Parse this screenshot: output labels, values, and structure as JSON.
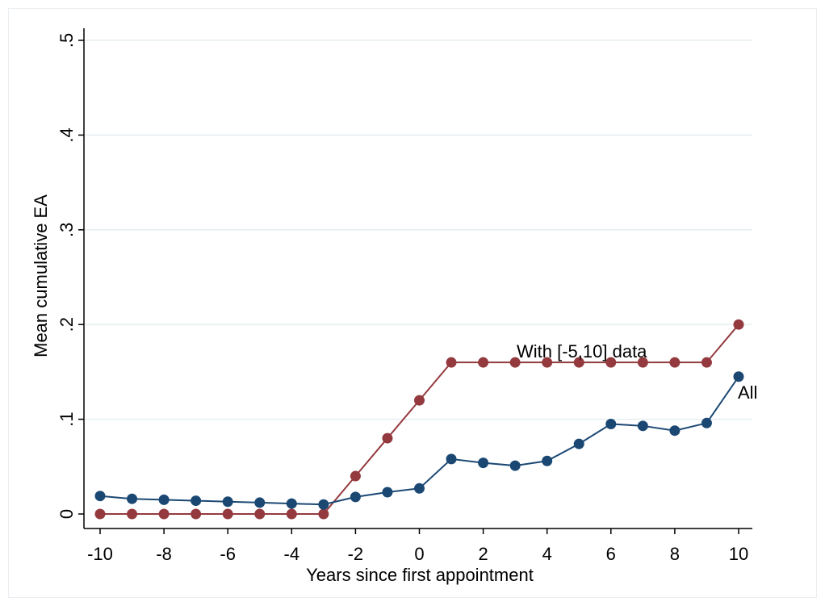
{
  "chart_data": {
    "type": "line",
    "title": "",
    "xlabel": "Years since first appointment",
    "ylabel": "Mean cumulative EA",
    "xlim": [
      -10,
      10
    ],
    "ylim": [
      0,
      0.5
    ],
    "x_ticks": [
      -10,
      -8,
      -6,
      -4,
      -2,
      0,
      2,
      4,
      6,
      8,
      10
    ],
    "x_tick_labels": [
      "-10",
      "-8",
      "-6",
      "-4",
      "-2",
      "0",
      "2",
      "4",
      "6",
      "8",
      "10"
    ],
    "y_ticks": [
      0,
      0.1,
      0.2,
      0.3,
      0.4,
      0.5
    ],
    "y_tick_labels": [
      "0",
      ".1",
      ".2",
      ".3",
      ".4",
      ".5"
    ],
    "grid": "horizontal",
    "legend": "none; series labeled at line ends",
    "x": [
      -10,
      -9,
      -8,
      -7,
      -6,
      -5,
      -4,
      -3,
      -2,
      -1,
      0,
      1,
      2,
      3,
      4,
      5,
      6,
      7,
      8,
      9,
      10
    ],
    "series": [
      {
        "name": "With [-5,10] data",
        "color": "#943a3f",
        "values": [
          0,
          0,
          0,
          0,
          0,
          0,
          0,
          0,
          0.04,
          0.08,
          0.12,
          0.16,
          0.16,
          0.16,
          0.16,
          0.16,
          0.16,
          0.16,
          0.16,
          0.16,
          0.2
        ]
      },
      {
        "name": "All",
        "color": "#1b4873",
        "values": [
          0.019,
          0.016,
          0.015,
          0.014,
          0.013,
          0.012,
          0.011,
          0.01,
          0.018,
          0.023,
          0.027,
          0.058,
          0.054,
          0.051,
          0.056,
          0.074,
          0.095,
          0.093,
          0.088,
          0.096,
          0.145
        ]
      }
    ]
  }
}
